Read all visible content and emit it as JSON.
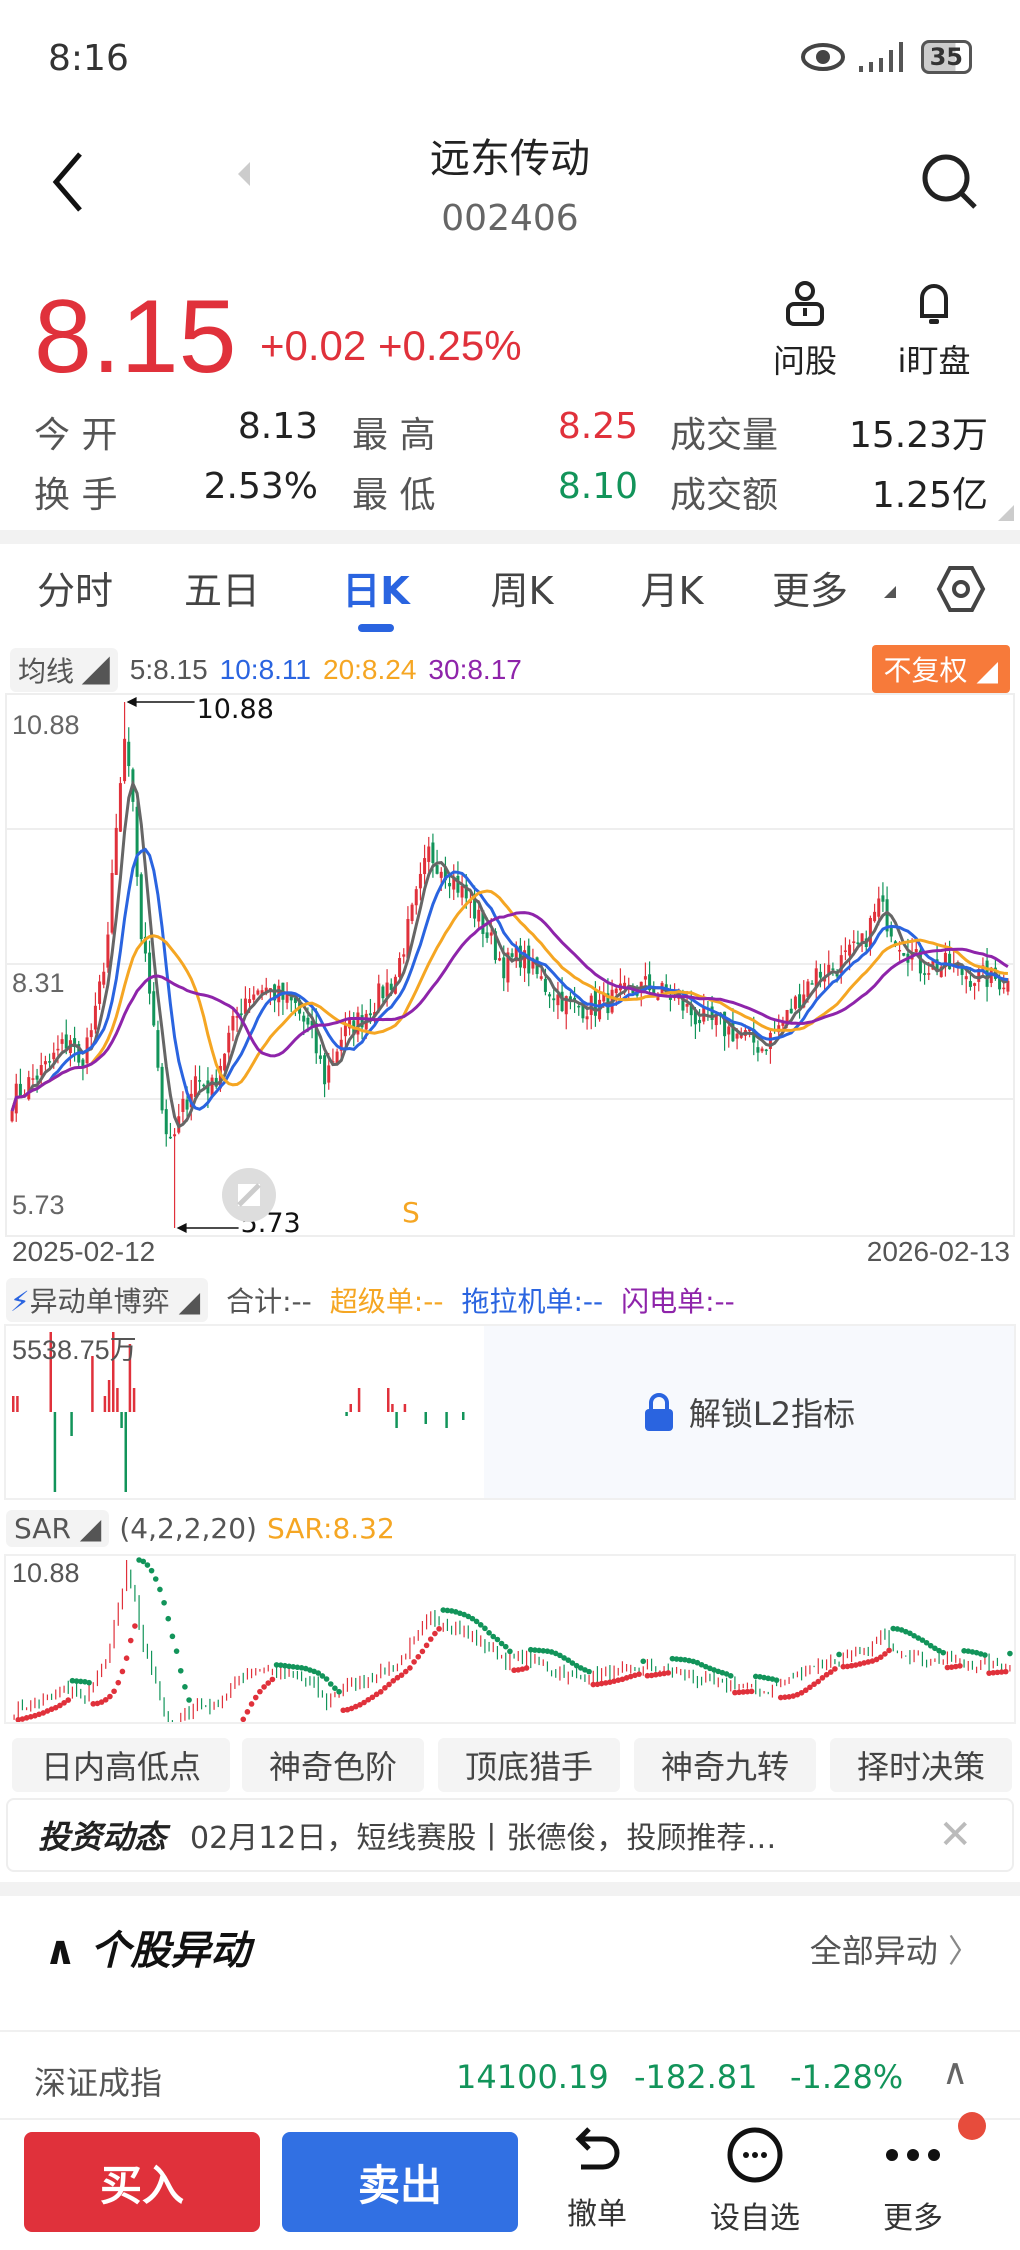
{
  "status_bar": {
    "time": "8:16",
    "battery": "35"
  },
  "header": {
    "title": "远东传动",
    "code": "002406"
  },
  "quote": {
    "price": "8.15",
    "change": "+0.02",
    "change_pct": "+0.25%",
    "actions": [
      {
        "label": "问股",
        "icon": "advisor-icon"
      },
      {
        "label": "i盯盘",
        "icon": "bell-icon"
      }
    ],
    "rows": [
      [
        {
          "label": "今 开",
          "value": "8.13"
        },
        {
          "label": "最 高",
          "value": "8.25"
        },
        {
          "label": "成交量",
          "value": "15.23万"
        }
      ],
      [
        {
          "label": "换 手",
          "value": "2.53%"
        },
        {
          "label": "最 低",
          "value": "8.10"
        },
        {
          "label": "成交额",
          "value": "1.25亿"
        }
      ]
    ]
  },
  "tabs": [
    {
      "label": "分时"
    },
    {
      "label": "五日"
    },
    {
      "label": "日K",
      "active": true
    },
    {
      "label": "周K"
    },
    {
      "label": "月K"
    },
    {
      "label": "更多"
    }
  ],
  "ma_legend": {
    "selector": "均线",
    "ma5": "5:8.15",
    "ma10": "10:8.11",
    "ma20": "20:8.24",
    "ma30": "30:8.17",
    "adjust": "不复权"
  },
  "colors": {
    "up": "#e0313b",
    "down": "#12945a",
    "ma5": "#666666",
    "ma10": "#2a64e0",
    "ma20": "#f5a623",
    "ma30": "#8e24aa",
    "accent": "#2a64e0"
  },
  "chart_data": {
    "type": "candlestick",
    "y_labels": [
      "10.88",
      "8.31",
      "5.73"
    ],
    "ylim": [
      5.73,
      10.88
    ],
    "max_marker": "10.88",
    "min_marker": "5.73",
    "signal_mark": "S",
    "x_start": "2025-02-12",
    "x_end": "2026-02-13",
    "close_keypoints": [
      [
        0,
        7.0
      ],
      [
        8,
        7.3
      ],
      [
        14,
        7.6
      ],
      [
        16,
        7.3
      ],
      [
        20,
        7.8
      ],
      [
        23,
        8.6
      ],
      [
        25,
        9.6
      ],
      [
        27,
        10.5
      ],
      [
        29,
        9.8
      ],
      [
        31,
        8.6
      ],
      [
        34,
        7.8
      ],
      [
        36,
        6.9
      ],
      [
        38,
        6.5
      ],
      [
        41,
        6.9
      ],
      [
        44,
        7.2
      ],
      [
        48,
        7.1
      ],
      [
        52,
        7.6
      ],
      [
        56,
        8.0
      ],
      [
        60,
        8.1
      ],
      [
        64,
        8.0
      ],
      [
        68,
        7.9
      ],
      [
        72,
        7.6
      ],
      [
        75,
        7.2
      ],
      [
        79,
        7.6
      ],
      [
        84,
        7.8
      ],
      [
        88,
        8.0
      ],
      [
        92,
        8.2
      ],
      [
        96,
        8.8
      ],
      [
        100,
        9.4
      ],
      [
        105,
        9.2
      ],
      [
        110,
        8.9
      ],
      [
        114,
        8.6
      ],
      [
        118,
        8.3
      ],
      [
        122,
        8.4
      ],
      [
        128,
        8.1
      ],
      [
        134,
        7.9
      ],
      [
        140,
        7.9
      ],
      [
        146,
        8.0
      ],
      [
        152,
        8.1
      ],
      [
        158,
        8.0
      ],
      [
        164,
        7.8
      ],
      [
        170,
        7.7
      ],
      [
        176,
        7.6
      ],
      [
        180,
        7.5
      ],
      [
        186,
        7.8
      ],
      [
        192,
        8.2
      ],
      [
        198,
        8.3
      ],
      [
        204,
        8.5
      ],
      [
        208,
        8.9
      ],
      [
        212,
        8.6
      ],
      [
        218,
        8.3
      ],
      [
        224,
        8.3
      ],
      [
        230,
        8.2
      ],
      [
        239,
        8.15
      ]
    ]
  },
  "flow_panel": {
    "selector": "异动单博弈",
    "total": "合计:--",
    "super": "超级单:--",
    "tractor": "拖拉机单:--",
    "lightning": "闪电单:--",
    "max_label": "5538.75万",
    "unlock": "解锁L2指标",
    "bars": [
      0.2,
      0.2,
      0,
      0,
      0,
      0,
      0,
      0,
      0,
      1,
      -1,
      0,
      0,
      0,
      -0.3,
      0,
      0,
      0,
      0,
      0.7,
      0,
      0,
      0.2,
      0.4,
      1,
      0.3,
      -0.2,
      -1,
      0.85,
      0.3,
      0,
      0,
      0,
      0,
      0,
      0,
      0,
      0,
      0,
      0,
      0,
      0,
      0,
      0,
      0,
      0,
      0,
      0,
      0,
      0,
      0,
      0,
      0,
      0,
      0,
      0,
      0,
      0,
      0,
      0,
      0,
      0,
      0,
      0,
      0,
      0,
      0,
      0,
      0,
      0,
      0,
      0,
      0,
      0,
      0,
      0,
      0,
      0,
      0,
      0,
      -0.05,
      0.1,
      0,
      0.3,
      0,
      0,
      0,
      0,
      0,
      0,
      0.3,
      0.1,
      -0.2,
      0,
      0.1,
      0,
      0,
      0,
      0,
      -0.15,
      0,
      0,
      0,
      0,
      -0.2,
      0,
      0,
      0,
      -0.1,
      0,
      0,
      0,
      0,
      0,
      0,
      0,
      0,
      0,
      0,
      0,
      0,
      0,
      0,
      0,
      0,
      0,
      0,
      0,
      0,
      0,
      0,
      0,
      0,
      0,
      0,
      0.1,
      0,
      0,
      0,
      0,
      0,
      0,
      0,
      0,
      0,
      0,
      0,
      0,
      0,
      0,
      0,
      0,
      0,
      0,
      0,
      0,
      0,
      0.1,
      0.25,
      0,
      0,
      -0.05,
      -0.1,
      -0.15
    ]
  },
  "sar_panel": {
    "selector": "SAR",
    "params": "(4,2,2,20)",
    "value": "SAR:8.32",
    "y_label": "10.88"
  },
  "tools": [
    "日内高低点",
    "神奇色阶",
    "顶底猎手",
    "神奇九转",
    "择时决策"
  ],
  "news": {
    "brand": "投资动态",
    "text": "02月12日，短线赛股丨张德俊，投顾推荐…"
  },
  "movement": {
    "title": "个股异动",
    "all": "全部异动"
  },
  "index_bar": {
    "name": "深证成指",
    "value": "14100.19",
    "change": "-182.81",
    "change_pct": "-1.28%"
  },
  "bottom_bar": {
    "buy": "买入",
    "sell": "卖出",
    "cancel": "撤单",
    "watchlist": "设自选",
    "more": "更多"
  }
}
